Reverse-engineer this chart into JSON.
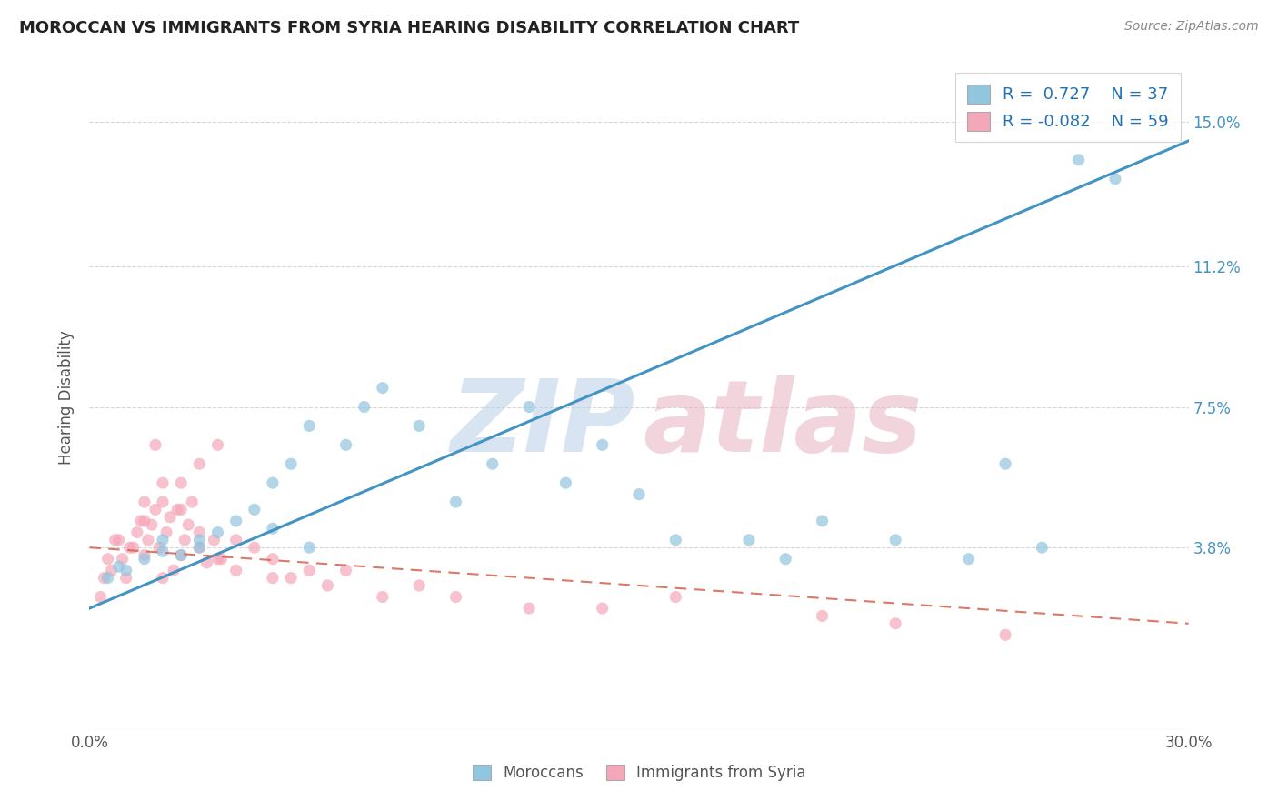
{
  "title": "MOROCCAN VS IMMIGRANTS FROM SYRIA HEARING DISABILITY CORRELATION CHART",
  "source": "Source: ZipAtlas.com",
  "ylabel": "Hearing Disability",
  "xmin": 0.0,
  "xmax": 0.3,
  "ymin": -0.01,
  "ymax": 0.165,
  "yticks": [
    0.038,
    0.075,
    0.112,
    0.15
  ],
  "ytick_labels": [
    "3.8%",
    "7.5%",
    "11.2%",
    "15.0%"
  ],
  "xticks": [
    0.0,
    0.05,
    0.1,
    0.15,
    0.2,
    0.25,
    0.3
  ],
  "xtick_labels": [
    "0.0%",
    "",
    "",
    "",
    "",
    "",
    "30.0%"
  ],
  "legend_R1": "0.727",
  "legend_N1": "37",
  "legend_R2": "-0.082",
  "legend_N2": "59",
  "legend_label1": "Moroccans",
  "legend_label2": "Immigrants from Syria",
  "blue_color": "#92c5de",
  "pink_color": "#f4a7b9",
  "blue_line_color": "#4393c3",
  "pink_line_color": "#d6604d",
  "title_color": "#222222",
  "watermark_ZIP_color": "#b8cfe8",
  "watermark_atlas_color": "#e8b4c0",
  "blue_line_start_y": 0.022,
  "blue_line_end_y": 0.145,
  "pink_line_start_y": 0.038,
  "pink_line_end_y": 0.018,
  "blue_scatter_x": [
    0.01,
    0.02,
    0.025,
    0.03,
    0.035,
    0.04,
    0.045,
    0.05,
    0.055,
    0.06,
    0.07,
    0.075,
    0.08,
    0.09,
    0.1,
    0.11,
    0.12,
    0.13,
    0.14,
    0.16,
    0.18,
    0.2,
    0.22,
    0.25,
    0.27,
    0.005,
    0.008,
    0.015,
    0.02,
    0.03,
    0.05,
    0.06,
    0.24,
    0.26,
    0.28,
    0.15,
    0.19
  ],
  "blue_scatter_y": [
    0.032,
    0.04,
    0.036,
    0.038,
    0.042,
    0.045,
    0.048,
    0.055,
    0.06,
    0.07,
    0.065,
    0.075,
    0.08,
    0.07,
    0.05,
    0.06,
    0.075,
    0.055,
    0.065,
    0.04,
    0.04,
    0.045,
    0.04,
    0.06,
    0.14,
    0.03,
    0.033,
    0.035,
    0.037,
    0.04,
    0.043,
    0.038,
    0.035,
    0.038,
    0.135,
    0.052,
    0.035
  ],
  "pink_scatter_x": [
    0.005,
    0.008,
    0.01,
    0.012,
    0.013,
    0.014,
    0.015,
    0.015,
    0.016,
    0.017,
    0.018,
    0.019,
    0.02,
    0.02,
    0.021,
    0.022,
    0.023,
    0.024,
    0.025,
    0.025,
    0.026,
    0.027,
    0.028,
    0.03,
    0.03,
    0.032,
    0.034,
    0.035,
    0.036,
    0.04,
    0.045,
    0.05,
    0.055,
    0.06,
    0.065,
    0.07,
    0.08,
    0.09,
    0.1,
    0.12,
    0.14,
    0.16,
    0.2,
    0.22,
    0.25,
    0.003,
    0.004,
    0.006,
    0.007,
    0.009,
    0.011,
    0.015,
    0.018,
    0.02,
    0.025,
    0.03,
    0.035,
    0.04,
    0.05
  ],
  "pink_scatter_y": [
    0.035,
    0.04,
    0.03,
    0.038,
    0.042,
    0.045,
    0.05,
    0.036,
    0.04,
    0.044,
    0.048,
    0.038,
    0.03,
    0.05,
    0.042,
    0.046,
    0.032,
    0.048,
    0.036,
    0.055,
    0.04,
    0.044,
    0.05,
    0.038,
    0.06,
    0.034,
    0.04,
    0.065,
    0.035,
    0.04,
    0.038,
    0.035,
    0.03,
    0.032,
    0.028,
    0.032,
    0.025,
    0.028,
    0.025,
    0.022,
    0.022,
    0.025,
    0.02,
    0.018,
    0.015,
    0.025,
    0.03,
    0.032,
    0.04,
    0.035,
    0.038,
    0.045,
    0.065,
    0.055,
    0.048,
    0.042,
    0.035,
    0.032,
    0.03
  ],
  "background_color": "#ffffff",
  "grid_color": "#cccccc"
}
